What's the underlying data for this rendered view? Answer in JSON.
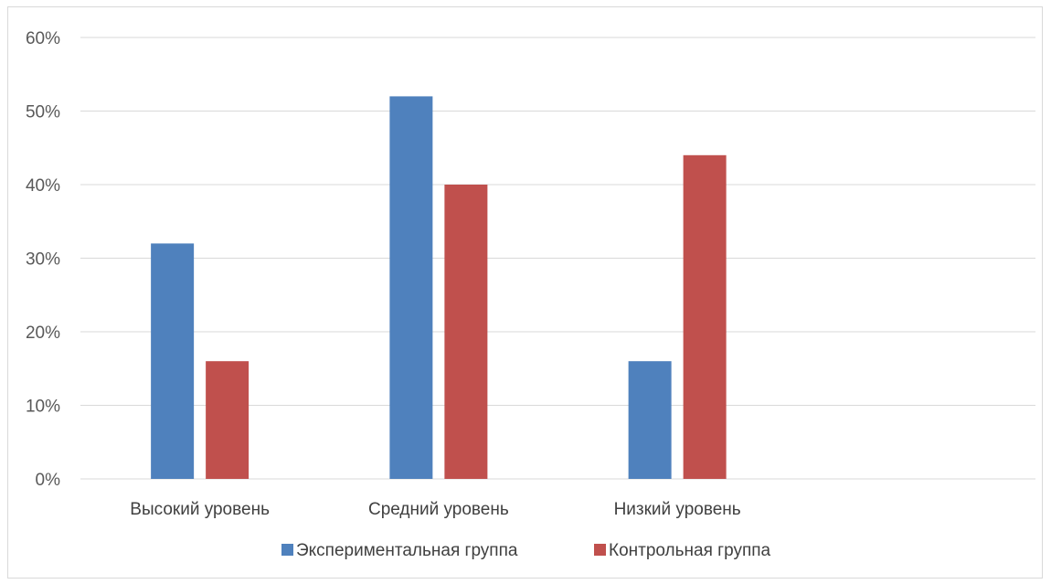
{
  "chart_data": {
    "type": "bar",
    "categories": [
      "Высокий уровень",
      "Средний уровень",
      "Низкий уровень"
    ],
    "series": [
      {
        "name": "Экспериментальная группа",
        "color": "#4f81bd",
        "values": [
          32,
          52,
          16
        ]
      },
      {
        "name": "Контрольная группа",
        "color": "#c0504d",
        "values": [
          16,
          40,
          44
        ]
      }
    ],
    "ylim": [
      0,
      60
    ],
    "ytick_step": 10,
    "ytick_labels": [
      "0%",
      "10%",
      "20%",
      "30%",
      "40%",
      "50%",
      "60%"
    ],
    "grid": true,
    "legend_position": "bottom"
  }
}
